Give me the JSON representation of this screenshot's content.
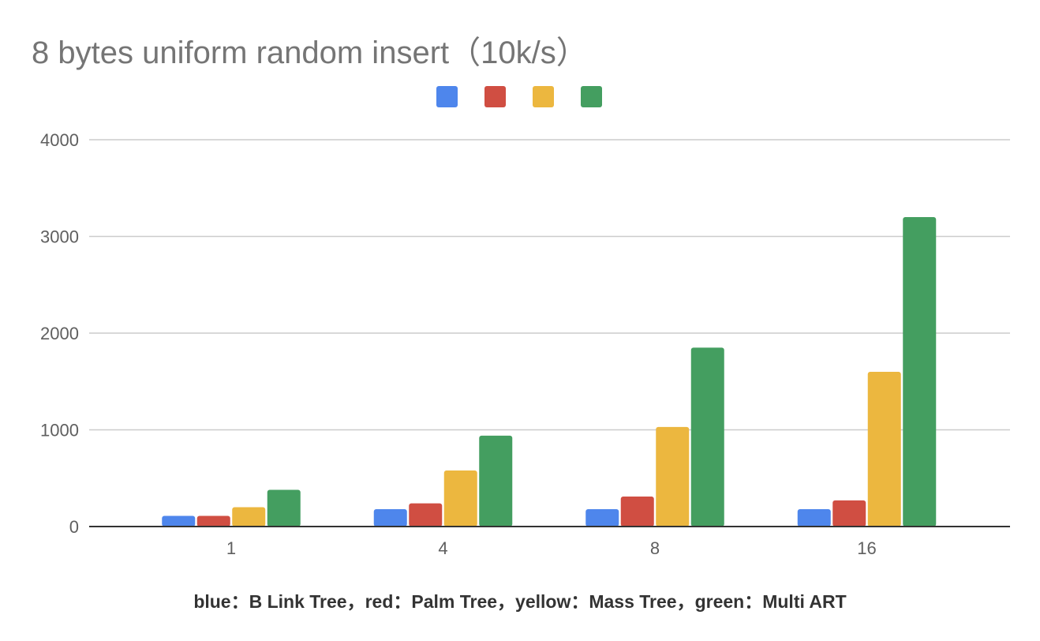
{
  "chart_data": {
    "type": "bar",
    "title": "8 bytes uniform random insert（10k/s）",
    "xlabel": "blue：B Link Tree，red：Palm Tree，yellow：Mass Tree，green：Multi ART",
    "ylabel": "",
    "categories": [
      "1",
      "4",
      "8",
      "16"
    ],
    "series": [
      {
        "color": "#4e86ec",
        "values": [
          110,
          180,
          180,
          180
        ]
      },
      {
        "color": "#d04e42",
        "values": [
          110,
          240,
          310,
          270
        ]
      },
      {
        "color": "#ecb73f",
        "values": [
          200,
          580,
          1030,
          1600
        ]
      },
      {
        "color": "#449e60",
        "values": [
          380,
          940,
          1850,
          3200
        ]
      }
    ],
    "ylim": [
      0,
      4000
    ],
    "yticks": [
      0,
      1000,
      2000,
      3000,
      4000
    ],
    "grid": true,
    "legend_position": "top-center"
  }
}
